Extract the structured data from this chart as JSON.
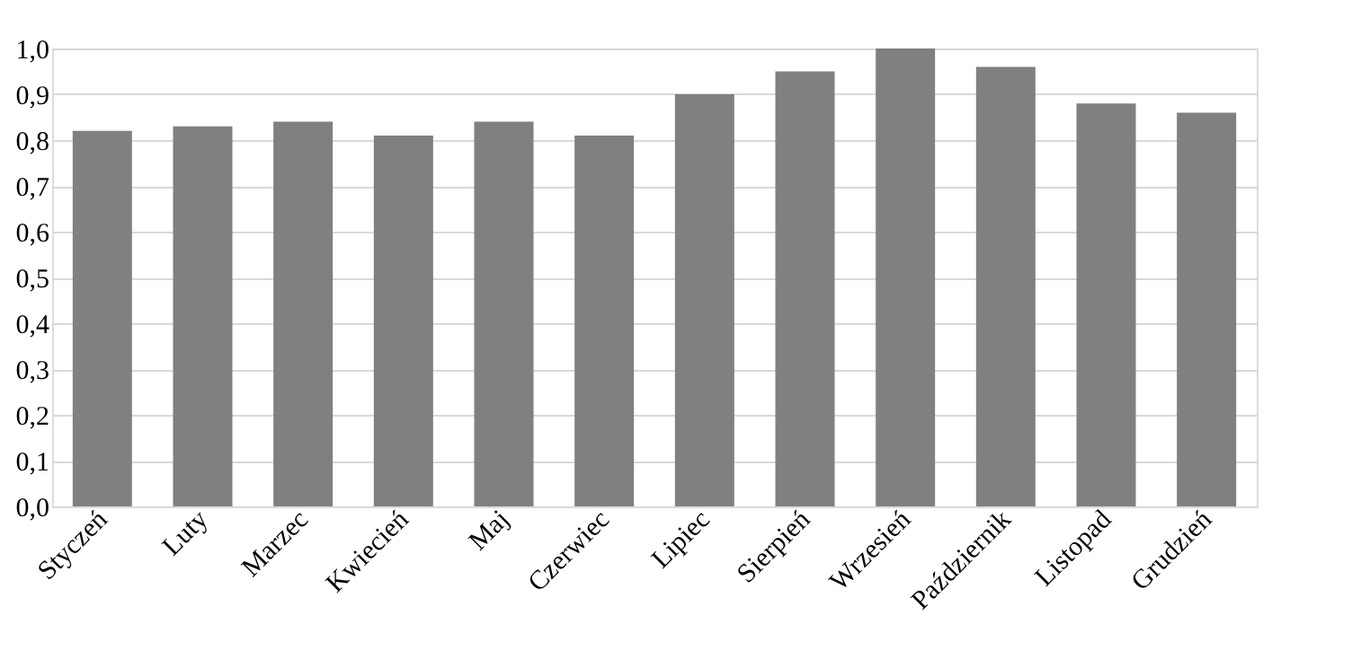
{
  "chart_data": {
    "type": "bar",
    "categories": [
      "Styczeń",
      "Luty",
      "Marzec",
      "Kwiecień",
      "Maj",
      "Czerwiec",
      "Lipiec",
      "Sierpień",
      "Wrzesień",
      "Październik",
      "Listopad",
      "Grudzień"
    ],
    "values": [
      0.82,
      0.83,
      0.84,
      0.81,
      0.84,
      0.81,
      0.9,
      0.95,
      1.0,
      0.96,
      0.88,
      0.86
    ],
    "color": "#808080",
    "ylim": [
      0,
      1.0
    ],
    "yticks": [
      {
        "value": 0,
        "label": "0,0"
      },
      {
        "value": 0.1,
        "label": "0,1"
      },
      {
        "value": 0.2,
        "label": "0,2"
      },
      {
        "value": 0.3,
        "label": "0,3"
      },
      {
        "value": 0.4,
        "label": "0,4"
      },
      {
        "value": 0.5,
        "label": "0,5"
      },
      {
        "value": 0.6,
        "label": "0,6"
      },
      {
        "value": 0.7,
        "label": "0,7"
      },
      {
        "value": 0.8,
        "label": "0,8"
      },
      {
        "value": 0.9,
        "label": "0,9"
      },
      {
        "value": 1.0,
        "label": "1,0"
      }
    ],
    "grid": "y"
  }
}
